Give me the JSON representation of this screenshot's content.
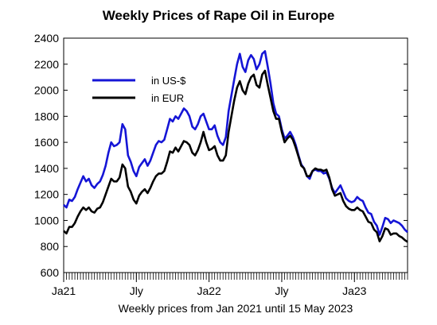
{
  "chart_data": {
    "type": "line",
    "title": "Weekly Prices of Rape Oil in Europe",
    "xlabel": "Weekly prices from Jan 2021 until 15 May 2023",
    "ylabel": "",
    "ylim": [
      600,
      2400
    ],
    "yticks": [
      600,
      800,
      1000,
      1200,
      1400,
      1600,
      1800,
      2000,
      2200,
      2400
    ],
    "xlim": [
      "2021-01-04",
      "2023-05-15"
    ],
    "xticks": [
      {
        "label": "Ja21",
        "date": "2021-01-04"
      },
      {
        "label": "Jly",
        "date": "2021-07-05"
      },
      {
        "label": "Ja22",
        "date": "2022-01-03"
      },
      {
        "label": "Jly",
        "date": "2022-07-04"
      },
      {
        "label": "Ja23",
        "date": "2023-01-02"
      }
    ],
    "grid": false,
    "legend": "top-left",
    "series": [
      {
        "name": "in US-$",
        "color": "#1515d6",
        "points": [
          [
            "2021-01-04",
            1120
          ],
          [
            "2021-01-11",
            1100
          ],
          [
            "2021-01-18",
            1160
          ],
          [
            "2021-01-25",
            1150
          ],
          [
            "2021-02-01",
            1180
          ],
          [
            "2021-02-08",
            1240
          ],
          [
            "2021-02-15",
            1290
          ],
          [
            "2021-02-22",
            1340
          ],
          [
            "2021-03-01",
            1300
          ],
          [
            "2021-03-08",
            1320
          ],
          [
            "2021-03-15",
            1270
          ],
          [
            "2021-03-22",
            1250
          ],
          [
            "2021-03-29",
            1280
          ],
          [
            "2021-04-05",
            1300
          ],
          [
            "2021-04-12",
            1350
          ],
          [
            "2021-04-19",
            1420
          ],
          [
            "2021-04-26",
            1520
          ],
          [
            "2021-05-03",
            1600
          ],
          [
            "2021-05-10",
            1570
          ],
          [
            "2021-05-17",
            1580
          ],
          [
            "2021-05-24",
            1600
          ],
          [
            "2021-05-31",
            1740
          ],
          [
            "2021-06-07",
            1700
          ],
          [
            "2021-06-14",
            1500
          ],
          [
            "2021-06-21",
            1450
          ],
          [
            "2021-06-28",
            1380
          ],
          [
            "2021-07-05",
            1340
          ],
          [
            "2021-07-12",
            1410
          ],
          [
            "2021-07-19",
            1440
          ],
          [
            "2021-07-26",
            1470
          ],
          [
            "2021-08-02",
            1420
          ],
          [
            "2021-08-09",
            1460
          ],
          [
            "2021-08-16",
            1520
          ],
          [
            "2021-08-23",
            1580
          ],
          [
            "2021-08-30",
            1610
          ],
          [
            "2021-09-06",
            1600
          ],
          [
            "2021-09-13",
            1620
          ],
          [
            "2021-09-20",
            1700
          ],
          [
            "2021-09-27",
            1780
          ],
          [
            "2021-10-04",
            1760
          ],
          [
            "2021-10-11",
            1800
          ],
          [
            "2021-10-18",
            1780
          ],
          [
            "2021-10-25",
            1820
          ],
          [
            "2021-11-01",
            1860
          ],
          [
            "2021-11-08",
            1840
          ],
          [
            "2021-11-15",
            1800
          ],
          [
            "2021-11-22",
            1720
          ],
          [
            "2021-11-29",
            1700
          ],
          [
            "2021-12-06",
            1740
          ],
          [
            "2021-12-13",
            1800
          ],
          [
            "2021-12-20",
            1820
          ],
          [
            "2021-12-27",
            1760
          ],
          [
            "2022-01-03",
            1700
          ],
          [
            "2022-01-10",
            1700
          ],
          [
            "2022-01-17",
            1730
          ],
          [
            "2022-01-24",
            1650
          ],
          [
            "2022-01-31",
            1600
          ],
          [
            "2022-02-07",
            1580
          ],
          [
            "2022-02-14",
            1640
          ],
          [
            "2022-02-21",
            1840
          ],
          [
            "2022-02-28",
            1960
          ],
          [
            "2022-03-07",
            2080
          ],
          [
            "2022-03-14",
            2200
          ],
          [
            "2022-03-21",
            2280
          ],
          [
            "2022-03-28",
            2180
          ],
          [
            "2022-04-04",
            2140
          ],
          [
            "2022-04-11",
            2230
          ],
          [
            "2022-04-18",
            2270
          ],
          [
            "2022-04-25",
            2240
          ],
          [
            "2022-05-02",
            2160
          ],
          [
            "2022-05-09",
            2200
          ],
          [
            "2022-05-16",
            2280
          ],
          [
            "2022-05-23",
            2300
          ],
          [
            "2022-05-30",
            2180
          ],
          [
            "2022-06-06",
            2050
          ],
          [
            "2022-06-13",
            1900
          ],
          [
            "2022-06-20",
            1820
          ],
          [
            "2022-06-27",
            1800
          ],
          [
            "2022-07-04",
            1700
          ],
          [
            "2022-07-11",
            1630
          ],
          [
            "2022-07-18",
            1650
          ],
          [
            "2022-07-25",
            1680
          ],
          [
            "2022-08-01",
            1640
          ],
          [
            "2022-08-08",
            1580
          ],
          [
            "2022-08-15",
            1500
          ],
          [
            "2022-08-22",
            1430
          ],
          [
            "2022-08-29",
            1400
          ],
          [
            "2022-09-05",
            1340
          ],
          [
            "2022-09-12",
            1320
          ],
          [
            "2022-09-19",
            1380
          ],
          [
            "2022-09-26",
            1390
          ],
          [
            "2022-10-03",
            1380
          ],
          [
            "2022-10-10",
            1380
          ],
          [
            "2022-10-17",
            1360
          ],
          [
            "2022-10-24",
            1370
          ],
          [
            "2022-10-31",
            1320
          ],
          [
            "2022-11-07",
            1250
          ],
          [
            "2022-11-14",
            1210
          ],
          [
            "2022-11-21",
            1240
          ],
          [
            "2022-11-28",
            1270
          ],
          [
            "2022-12-05",
            1220
          ],
          [
            "2022-12-12",
            1170
          ],
          [
            "2022-12-19",
            1150
          ],
          [
            "2022-12-26",
            1140
          ],
          [
            "2023-01-02",
            1150
          ],
          [
            "2023-01-09",
            1180
          ],
          [
            "2023-01-16",
            1160
          ],
          [
            "2023-01-23",
            1150
          ],
          [
            "2023-01-30",
            1100
          ],
          [
            "2023-02-06",
            1060
          ],
          [
            "2023-02-13",
            1050
          ],
          [
            "2023-02-20",
            990
          ],
          [
            "2023-02-27",
            960
          ],
          [
            "2023-03-06",
            890
          ],
          [
            "2023-03-13",
            950
          ],
          [
            "2023-03-20",
            1020
          ],
          [
            "2023-03-27",
            1010
          ],
          [
            "2023-04-03",
            980
          ],
          [
            "2023-04-10",
            1000
          ],
          [
            "2023-04-17",
            990
          ],
          [
            "2023-04-24",
            980
          ],
          [
            "2023-05-01",
            960
          ],
          [
            "2023-05-08",
            930
          ],
          [
            "2023-05-15",
            910
          ]
        ]
      },
      {
        "name": "in EUR",
        "color": "#000000",
        "points": [
          [
            "2021-01-04",
            920
          ],
          [
            "2021-01-11",
            900
          ],
          [
            "2021-01-18",
            950
          ],
          [
            "2021-01-25",
            950
          ],
          [
            "2021-02-01",
            980
          ],
          [
            "2021-02-08",
            1030
          ],
          [
            "2021-02-15",
            1070
          ],
          [
            "2021-02-22",
            1100
          ],
          [
            "2021-03-01",
            1080
          ],
          [
            "2021-03-08",
            1100
          ],
          [
            "2021-03-15",
            1070
          ],
          [
            "2021-03-22",
            1060
          ],
          [
            "2021-03-29",
            1090
          ],
          [
            "2021-04-05",
            1100
          ],
          [
            "2021-04-12",
            1140
          ],
          [
            "2021-04-19",
            1200
          ],
          [
            "2021-04-26",
            1260
          ],
          [
            "2021-05-03",
            1320
          ],
          [
            "2021-05-10",
            1300
          ],
          [
            "2021-05-17",
            1300
          ],
          [
            "2021-05-24",
            1330
          ],
          [
            "2021-05-31",
            1430
          ],
          [
            "2021-06-07",
            1400
          ],
          [
            "2021-06-14",
            1260
          ],
          [
            "2021-06-21",
            1220
          ],
          [
            "2021-06-28",
            1160
          ],
          [
            "2021-07-05",
            1130
          ],
          [
            "2021-07-12",
            1190
          ],
          [
            "2021-07-19",
            1220
          ],
          [
            "2021-07-26",
            1240
          ],
          [
            "2021-08-02",
            1210
          ],
          [
            "2021-08-09",
            1250
          ],
          [
            "2021-08-16",
            1300
          ],
          [
            "2021-08-23",
            1340
          ],
          [
            "2021-08-30",
            1360
          ],
          [
            "2021-09-06",
            1360
          ],
          [
            "2021-09-13",
            1380
          ],
          [
            "2021-09-20",
            1450
          ],
          [
            "2021-09-27",
            1530
          ],
          [
            "2021-10-04",
            1520
          ],
          [
            "2021-10-11",
            1560
          ],
          [
            "2021-10-18",
            1530
          ],
          [
            "2021-10-25",
            1570
          ],
          [
            "2021-11-01",
            1610
          ],
          [
            "2021-11-08",
            1600
          ],
          [
            "2021-11-15",
            1580
          ],
          [
            "2021-11-22",
            1520
          ],
          [
            "2021-11-29",
            1500
          ],
          [
            "2021-12-06",
            1540
          ],
          [
            "2021-12-13",
            1600
          ],
          [
            "2021-12-20",
            1680
          ],
          [
            "2021-12-27",
            1600
          ],
          [
            "2022-01-03",
            1540
          ],
          [
            "2022-01-10",
            1550
          ],
          [
            "2022-01-17",
            1570
          ],
          [
            "2022-01-24",
            1500
          ],
          [
            "2022-01-31",
            1460
          ],
          [
            "2022-02-07",
            1460
          ],
          [
            "2022-02-14",
            1500
          ],
          [
            "2022-02-21",
            1680
          ],
          [
            "2022-02-28",
            1800
          ],
          [
            "2022-03-07",
            1920
          ],
          [
            "2022-03-14",
            2020
          ],
          [
            "2022-03-21",
            2070
          ],
          [
            "2022-03-28",
            2000
          ],
          [
            "2022-04-04",
            1970
          ],
          [
            "2022-04-11",
            2050
          ],
          [
            "2022-04-18",
            2100
          ],
          [
            "2022-04-25",
            2120
          ],
          [
            "2022-05-02",
            2040
          ],
          [
            "2022-05-09",
            2020
          ],
          [
            "2022-05-16",
            2120
          ],
          [
            "2022-05-23",
            2150
          ],
          [
            "2022-05-30",
            2040
          ],
          [
            "2022-06-06",
            1940
          ],
          [
            "2022-06-13",
            1840
          ],
          [
            "2022-06-20",
            1780
          ],
          [
            "2022-06-27",
            1780
          ],
          [
            "2022-07-04",
            1680
          ],
          [
            "2022-07-11",
            1600
          ],
          [
            "2022-07-18",
            1630
          ],
          [
            "2022-07-25",
            1650
          ],
          [
            "2022-08-01",
            1620
          ],
          [
            "2022-08-08",
            1560
          ],
          [
            "2022-08-15",
            1490
          ],
          [
            "2022-08-22",
            1420
          ],
          [
            "2022-08-29",
            1400
          ],
          [
            "2022-09-05",
            1340
          ],
          [
            "2022-09-12",
            1340
          ],
          [
            "2022-09-19",
            1380
          ],
          [
            "2022-09-26",
            1400
          ],
          [
            "2022-10-03",
            1390
          ],
          [
            "2022-10-10",
            1390
          ],
          [
            "2022-10-17",
            1380
          ],
          [
            "2022-10-24",
            1390
          ],
          [
            "2022-10-31",
            1330
          ],
          [
            "2022-11-07",
            1240
          ],
          [
            "2022-11-14",
            1190
          ],
          [
            "2022-11-21",
            1200
          ],
          [
            "2022-11-28",
            1210
          ],
          [
            "2022-12-05",
            1150
          ],
          [
            "2022-12-12",
            1110
          ],
          [
            "2022-12-19",
            1090
          ],
          [
            "2022-12-26",
            1080
          ],
          [
            "2023-01-02",
            1080
          ],
          [
            "2023-01-09",
            1100
          ],
          [
            "2023-01-16",
            1080
          ],
          [
            "2023-01-23",
            1070
          ],
          [
            "2023-01-30",
            1030
          ],
          [
            "2023-02-06",
            990
          ],
          [
            "2023-02-13",
            980
          ],
          [
            "2023-02-20",
            930
          ],
          [
            "2023-02-27",
            910
          ],
          [
            "2023-03-06",
            840
          ],
          [
            "2023-03-13",
            880
          ],
          [
            "2023-03-20",
            940
          ],
          [
            "2023-03-27",
            930
          ],
          [
            "2023-04-03",
            890
          ],
          [
            "2023-04-10",
            900
          ],
          [
            "2023-04-17",
            900
          ],
          [
            "2023-04-24",
            880
          ],
          [
            "2023-05-01",
            870
          ],
          [
            "2023-05-08",
            850
          ],
          [
            "2023-05-15",
            835
          ]
        ]
      }
    ]
  }
}
